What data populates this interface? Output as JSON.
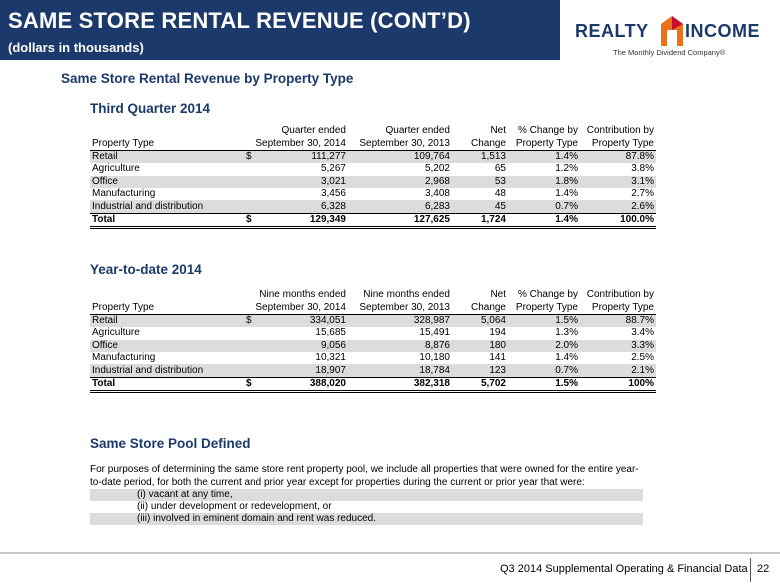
{
  "header": {
    "title": "SAME STORE RENTAL REVENUE (CONT’D)",
    "subtitle": "(dollars in thousands)"
  },
  "logo": {
    "word_left": "REALTY",
    "word_right": "INCOME",
    "tagline": "The Monthly Dividend Company®",
    "colors": {
      "navy": "#1b3a6b",
      "orange": "#e8731a",
      "red": "#c8102e"
    }
  },
  "section_title": "Same Store Rental Revenue by Property Type",
  "q3": {
    "heading": "Third Quarter 2014",
    "columns": {
      "type": "Property Type",
      "cur_l1": "Quarter ended",
      "cur_l2": "September 30, 2014",
      "prior_l1": "Quarter ended",
      "prior_l2": "September 30, 2013",
      "net_l1": "Net",
      "net_l2": "Change",
      "pct_l1": "% Change by",
      "pct_l2": "Property Type",
      "con_l1": "Contribution by",
      "con_l2": "Property Type"
    },
    "rows": [
      {
        "type": "Retail",
        "dollar": "$",
        "cur": "111,277",
        "prior": "109,764",
        "net": "1,513",
        "pct": "1.4%",
        "con": "87.8%"
      },
      {
        "type": "Agriculture",
        "dollar": "",
        "cur": "5,267",
        "prior": "5,202",
        "net": "65",
        "pct": "1.2%",
        "con": "3.8%"
      },
      {
        "type": "Office",
        "dollar": "",
        "cur": "3,021",
        "prior": "2,968",
        "net": "53",
        "pct": "1.8%",
        "con": "3.1%"
      },
      {
        "type": "Manufacturing",
        "dollar": "",
        "cur": "3,456",
        "prior": "3,408",
        "net": "48",
        "pct": "1.4%",
        "con": "2.7%"
      },
      {
        "type": "Industrial and distribution",
        "dollar": "",
        "cur": "6,328",
        "prior": "6,283",
        "net": "45",
        "pct": "0.7%",
        "con": "2.6%"
      }
    ],
    "total": {
      "type": "Total",
      "dollar": "$",
      "cur": "129,349",
      "prior": "127,625",
      "net": "1,724",
      "pct": "1.4%",
      "con": "100.0%"
    }
  },
  "ytd": {
    "heading": "Year-to-date 2014",
    "columns": {
      "type": "Property Type",
      "cur_l1": "Nine months ended",
      "cur_l2": "September 30, 2014",
      "prior_l1": "Nine months ended",
      "prior_l2": "September 30, 2013",
      "net_l1": "Net",
      "net_l2": "Change",
      "pct_l1": "% Change by",
      "pct_l2": "Property Type",
      "con_l1": "Contribution by",
      "con_l2": "Property Type"
    },
    "rows": [
      {
        "type": "Retail",
        "dollar": "$",
        "cur": "334,051",
        "prior": "328,987",
        "net": "5,064",
        "pct": "1.5%",
        "con": "88.7%"
      },
      {
        "type": "Agriculture",
        "dollar": "",
        "cur": "15,685",
        "prior": "15,491",
        "net": "194",
        "pct": "1.3%",
        "con": "3.4%"
      },
      {
        "type": "Office",
        "dollar": "",
        "cur": "9,056",
        "prior": "8,876",
        "net": "180",
        "pct": "2.0%",
        "con": "3.3%"
      },
      {
        "type": "Manufacturing",
        "dollar": "",
        "cur": "10,321",
        "prior": "10,180",
        "net": "141",
        "pct": "1.4%",
        "con": "2.5%"
      },
      {
        "type": "Industrial and distribution",
        "dollar": "",
        "cur": "18,907",
        "prior": "18,784",
        "net": "123",
        "pct": "0.7%",
        "con": "2.1%"
      }
    ],
    "total": {
      "type": "Total",
      "dollar": "$",
      "cur": "388,020",
      "prior": "382,318",
      "net": "5,702",
      "pct": "1.5%",
      "con": "100%"
    }
  },
  "pool": {
    "heading": "Same Store Pool Defined",
    "text": "For purposes of determining the same store rent property pool, we include all properties that were owned for the entire year-to-date period, for both the current and prior year except for properties during the current or prior year that were:",
    "items": [
      "(i) vacant at any time,",
      "(ii) under development or redevelopment, or",
      "(iii) involved in eminent domain and rent was reduced."
    ]
  },
  "footer": {
    "text": "Q3 2014 Supplemental Operating & Financial Data",
    "page": "22"
  }
}
